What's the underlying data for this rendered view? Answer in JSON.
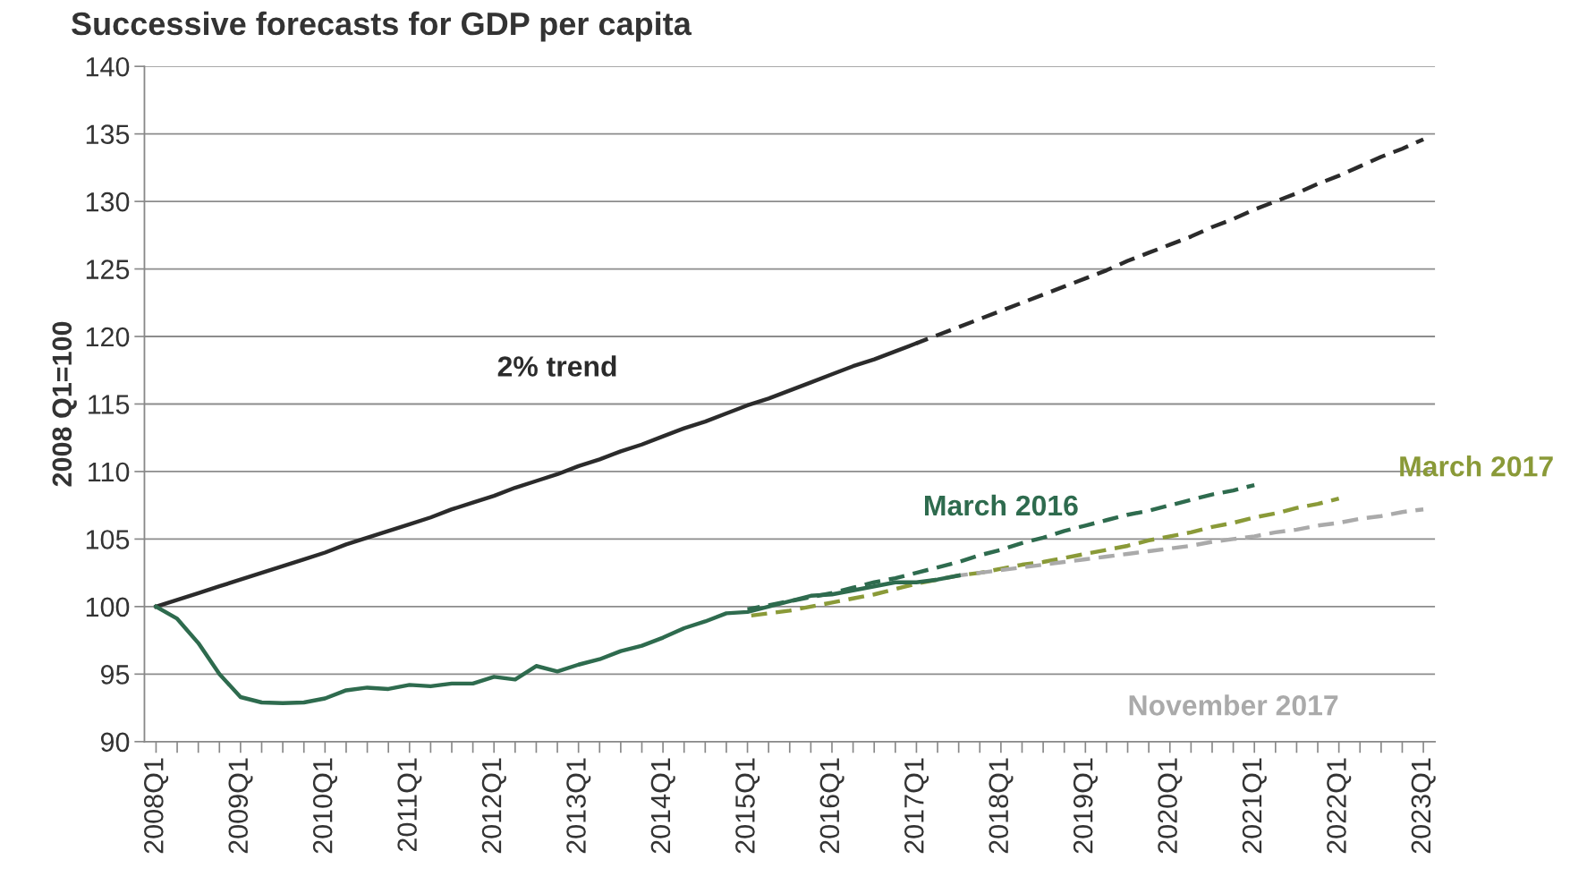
{
  "chart_data": {
    "type": "line",
    "title": "Successive forecasts for GDP per capita",
    "ylabel": "2008 Q1=100",
    "categories": [
      "2008Q1",
      null,
      null,
      null,
      "2009Q1",
      null,
      null,
      null,
      "2010Q1",
      null,
      null,
      null,
      "2011Q1",
      null,
      null,
      null,
      "2012Q1",
      null,
      null,
      null,
      "2013Q1",
      null,
      null,
      null,
      "2014Q1",
      null,
      null,
      null,
      "2015Q1",
      null,
      null,
      null,
      "2016Q1",
      null,
      null,
      null,
      "2017Q1",
      null,
      null,
      null,
      "2018Q1",
      null,
      null,
      null,
      "2019Q1",
      null,
      null,
      null,
      "2020Q1",
      null,
      null,
      null,
      "2021Q1",
      null,
      null,
      null,
      "2022Q1",
      null,
      null,
      null,
      "2023Q1"
    ],
    "series": [
      {
        "color": "#2e6b4e",
        "line_style": "solid",
        "values": [
          100,
          99.1,
          97.3,
          95.0,
          93.3,
          92.9,
          92.85,
          92.9,
          93.2,
          93.8,
          94.0,
          93.9,
          94.2,
          94.1,
          94.3,
          94.3,
          94.8,
          94.6,
          95.6,
          95.2,
          95.7,
          96.1,
          96.7,
          97.1,
          97.7,
          98.4,
          98.9,
          99.5,
          99.6,
          100.0,
          100.4,
          100.8,
          100.9,
          101.2,
          101.5,
          101.8,
          101.8,
          102.0,
          102.3,
          null,
          null,
          null,
          null,
          null,
          null,
          null,
          null,
          null,
          null,
          null,
          null,
          null,
          null,
          null,
          null,
          null,
          null,
          null,
          null,
          null,
          null
        ]
      },
      {
        "name": "2% trend",
        "color": "#2b2b2b",
        "line_style": "solid",
        "values": [
          100,
          100.5,
          101,
          101.5,
          102,
          102.5,
          103,
          103.5,
          104,
          104.6,
          105.1,
          105.6,
          106.1,
          106.6,
          107.2,
          107.7,
          108.2,
          108.8,
          109.3,
          109.8,
          110.4,
          110.9,
          111.5,
          112.0,
          112.6,
          113.2,
          113.7,
          114.3,
          114.9,
          115.4,
          116.0,
          116.6,
          117.2,
          117.8,
          118.3,
          118.9,
          119.5,
          null,
          null,
          null,
          null,
          null,
          null,
          null,
          null,
          null,
          null,
          null,
          null,
          null,
          null,
          null,
          null,
          null,
          null,
          null,
          null,
          null,
          null,
          null,
          null
        ]
      },
      {
        "color": "#2b2b2b",
        "line_style": "dashed",
        "values": [
          null,
          null,
          null,
          null,
          null,
          null,
          null,
          null,
          null,
          null,
          null,
          null,
          null,
          null,
          null,
          null,
          null,
          null,
          null,
          null,
          null,
          null,
          null,
          null,
          null,
          null,
          null,
          null,
          null,
          null,
          null,
          null,
          null,
          null,
          null,
          null,
          119.5,
          120.1,
          120.7,
          121.3,
          121.9,
          122.5,
          123.1,
          123.7,
          124.3,
          124.9,
          125.6,
          126.2,
          126.8,
          127.4,
          128.1,
          128.7,
          129.4,
          130.0,
          130.6,
          131.3,
          131.9,
          132.6,
          133.3,
          133.9,
          134.6
        ]
      },
      {
        "name": "March 2016",
        "color": "#2e6b4e",
        "line_style": "dashed",
        "values": [
          null,
          null,
          null,
          null,
          null,
          null,
          null,
          null,
          null,
          null,
          null,
          null,
          null,
          null,
          null,
          null,
          null,
          null,
          null,
          null,
          null,
          null,
          null,
          null,
          null,
          null,
          null,
          null,
          99.8,
          100.1,
          100.4,
          100.7,
          101.0,
          101.4,
          101.8,
          102.1,
          102.5,
          102.9,
          103.3,
          103.8,
          104.2,
          104.7,
          105.1,
          105.6,
          106.0,
          106.4,
          106.8,
          107.1,
          107.5,
          107.9,
          108.3,
          108.6,
          109.0,
          null,
          null,
          null,
          null,
          null,
          null,
          null,
          null
        ]
      },
      {
        "name": "March 2017",
        "color": "#8a9a38",
        "line_style": "dashed",
        "values": [
          null,
          null,
          null,
          null,
          null,
          null,
          null,
          null,
          null,
          null,
          null,
          null,
          null,
          null,
          null,
          null,
          null,
          null,
          null,
          null,
          null,
          null,
          null,
          null,
          null,
          null,
          null,
          null,
          99.3,
          99.5,
          99.7,
          100.0,
          100.3,
          100.6,
          100.9,
          101.3,
          101.7,
          102.0,
          102.3,
          102.5,
          102.8,
          103.1,
          103.3,
          103.6,
          103.9,
          104.2,
          104.5,
          104.9,
          105.2,
          105.5,
          105.9,
          106.2,
          106.6,
          106.9,
          107.3,
          107.6,
          108.0,
          null,
          null,
          null,
          null
        ]
      },
      {
        "name": "November 2017",
        "color": "#aaaaaa",
        "line_style": "dashed",
        "values": [
          null,
          null,
          null,
          null,
          null,
          null,
          null,
          null,
          null,
          null,
          null,
          null,
          null,
          null,
          null,
          null,
          null,
          null,
          null,
          null,
          null,
          null,
          null,
          null,
          null,
          null,
          null,
          null,
          null,
          null,
          null,
          null,
          null,
          null,
          null,
          null,
          null,
          null,
          102.3,
          102.5,
          102.7,
          102.9,
          103.1,
          103.3,
          103.5,
          103.7,
          103.9,
          104.1,
          104.3,
          104.5,
          104.8,
          105.0,
          105.2,
          105.5,
          105.7,
          106.0,
          106.2,
          106.5,
          106.7,
          107.0,
          107.2
        ]
      }
    ],
    "ylim": [
      90,
      140
    ],
    "yticks": [
      90,
      95,
      100,
      105,
      110,
      115,
      120,
      125,
      130,
      135,
      140
    ],
    "grid": "y",
    "legend": false,
    "marker": "none"
  }
}
